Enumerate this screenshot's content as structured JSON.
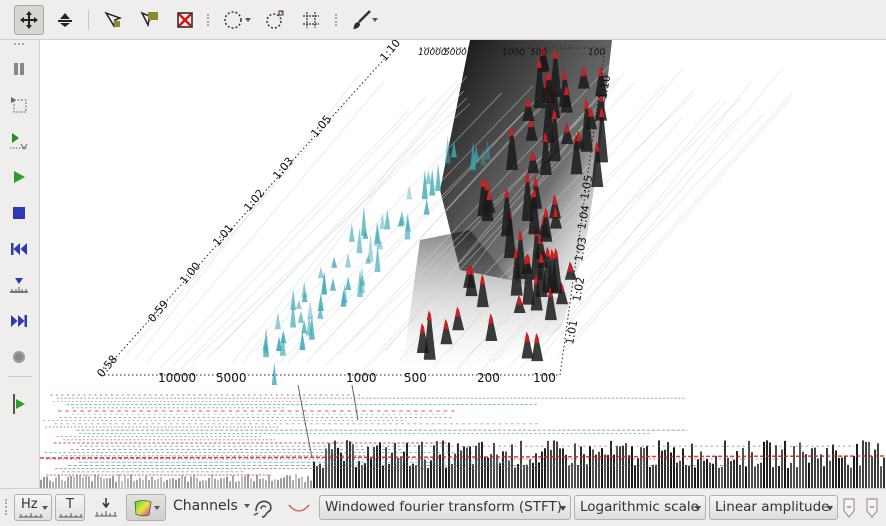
{
  "toolbar_top": {
    "icons": [
      "move-icon",
      "zoom-icon",
      "select-point-icon",
      "select-comment-icon",
      "delete-icon",
      "ellipse-icon",
      "rotate-icon",
      "grid-icon",
      "brush-icon"
    ]
  },
  "toolbar_left": {
    "icons": [
      "pause-icon",
      "select-region-icon",
      "play-selection-icon",
      "play-icon",
      "stop-icon",
      "rewind-icon",
      "marker-icon",
      "fast-forward-icon",
      "record-icon",
      "follow-play-icon"
    ]
  },
  "plot": {
    "time_axis_labels": [
      "0:58",
      "0:59",
      "1:00",
      "1:01",
      "1:02",
      "1:03",
      "1:05",
      "1:10"
    ],
    "freq_axis_labels": [
      "10000",
      "5000",
      "1000",
      "500",
      "200",
      "100"
    ],
    "freq_axis_top_labels": [
      "10000",
      "5000",
      "1000",
      "500",
      "100"
    ],
    "right_time_labels": [
      "1:01",
      "1:02",
      "1:03",
      "1:04",
      "1:05",
      "1:10"
    ],
    "colors": {
      "peak": "#cc1f1f",
      "low": "#3aa7b5",
      "shadow": "#000000"
    }
  },
  "bottom": {
    "hz_label": "Hz",
    "t_label": "T",
    "channels_label": "Channels",
    "transform": "Windowed fourier transform (STFT)",
    "scale": "Logarithmic scale",
    "amplitude": "Linear amplitude"
  }
}
